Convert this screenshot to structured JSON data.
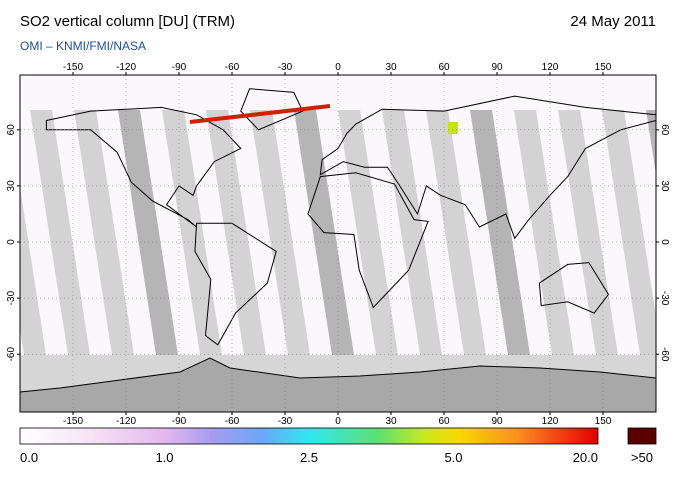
{
  "header": {
    "title": "SO2 vertical column [DU] (TRM)",
    "date": "24 May 2011",
    "source": "OMI – KNMI/FMI/NASA"
  },
  "map": {
    "lon_ticks": [
      -150,
      -120,
      -90,
      -60,
      -30,
      0,
      30,
      60,
      90,
      120,
      150
    ],
    "lat_ticks": [
      60,
      30,
      0,
      -30,
      -60
    ]
  },
  "colorbar": {
    "labels": [
      "0.0",
      "1.0",
      "2.5",
      "5.0",
      "20.0"
    ],
    "overflow_label": ">50"
  }
}
